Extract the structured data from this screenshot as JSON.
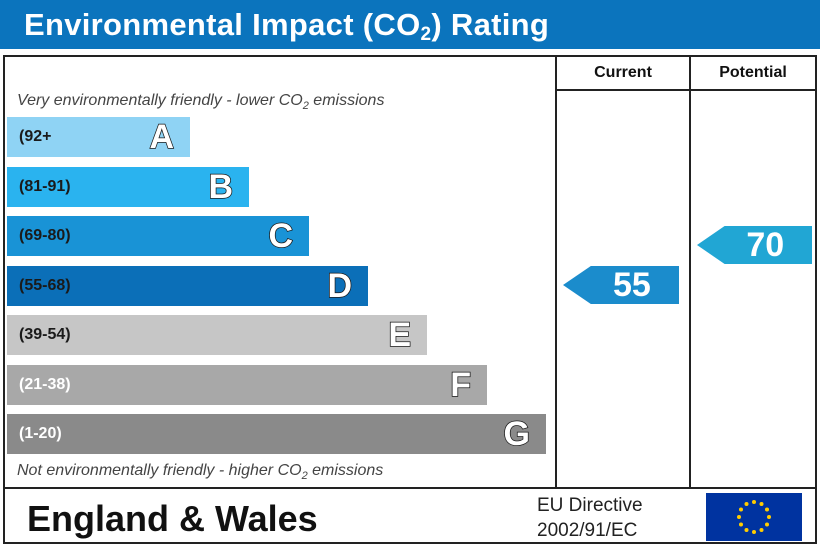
{
  "header": {
    "title_prefix": "Environmental Impact (CO",
    "title_sub": "2",
    "title_suffix": ") Rating"
  },
  "columns": {
    "current": "Current",
    "potential": "Potential"
  },
  "captions": {
    "top_prefix": "Very environmentally friendly - lower CO",
    "top_sub": "2",
    "top_suffix": " emissions",
    "bottom_prefix": "Not environmentally friendly - higher CO",
    "bottom_sub": "2",
    "bottom_suffix": " emissions"
  },
  "footer": {
    "region": "England & Wales",
    "directive_line1": "EU Directive",
    "directive_line2": "2002/91/EC"
  },
  "chart_data": {
    "type": "bar",
    "bands": [
      {
        "range": "(92+",
        "letter": "A",
        "color": "#8fd3f4",
        "range_color": "#1a1a1a"
      },
      {
        "range": "(81-91)",
        "letter": "B",
        "color": "#2ab3ef",
        "range_color": "#1a1a1a"
      },
      {
        "range": "(69-80)",
        "letter": "C",
        "color": "#1993d6",
        "range_color": "#1a1a1a"
      },
      {
        "range": "(55-68)",
        "letter": "D",
        "color": "#0b6fb8",
        "range_color": "#1a1a1a"
      },
      {
        "range": "(39-54)",
        "letter": "E",
        "color": "#c6c6c6",
        "range_color": "#1a1a1a"
      },
      {
        "range": "(21-38)",
        "letter": "F",
        "color": "#a8a8a8",
        "range_color": "#ffffff"
      },
      {
        "range": "(1-20)",
        "letter": "G",
        "color": "#8a8a8a",
        "range_color": "#ffffff"
      }
    ],
    "current": {
      "value": 55,
      "color": "#1b8ccc"
    },
    "potential": {
      "value": 70,
      "color": "#21a6d4"
    }
  }
}
